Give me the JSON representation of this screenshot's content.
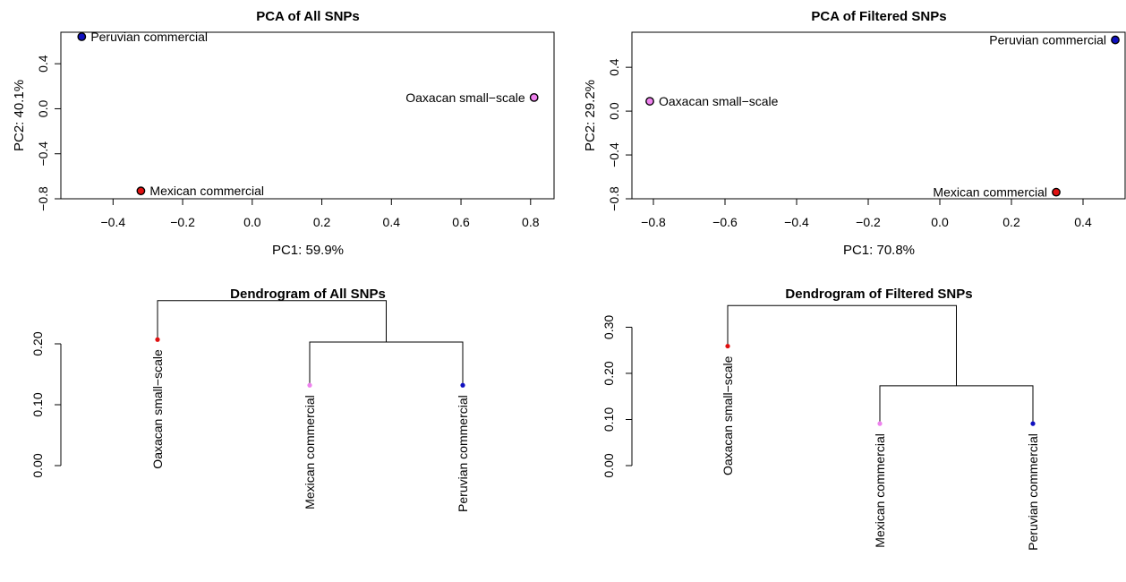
{
  "chart_data": [
    {
      "type": "scatter",
      "title": "PCA of All SNPs",
      "xlabel": "PC1: 59.9%",
      "ylabel": "PC2: 40.1%",
      "xlim": [
        -0.55,
        0.87
      ],
      "ylim": [
        -0.8,
        0.68
      ],
      "xticks": [
        -0.4,
        -0.2,
        0.0,
        0.2,
        0.4,
        0.6,
        0.8
      ],
      "xtick_labels": [
        "−0.4",
        "−0.2",
        "0.0",
        "0.2",
        "0.4",
        "0.6",
        "0.8"
      ],
      "yticks": [
        -0.8,
        -0.4,
        0.0,
        0.4
      ],
      "ytick_labels": [
        "−0.8",
        "−0.4",
        "0.0",
        "0.4"
      ],
      "grid": false,
      "points": [
        {
          "label": "Peruvian commercial",
          "x": -0.49,
          "y": 0.64,
          "color": "#1010c0",
          "label_side": "right"
        },
        {
          "label": "Oaxacan small−scale",
          "x": 0.81,
          "y": 0.1,
          "color": "#ee82ee",
          "label_side": "left"
        },
        {
          "label": "Mexican commercial",
          "x": -0.32,
          "y": -0.73,
          "color": "#e01010",
          "label_side": "right"
        }
      ]
    },
    {
      "type": "scatter",
      "title": "PCA of Filtered SNPs",
      "xlabel": "PC1: 70.8%",
      "ylabel": "PC2: 29.2%",
      "xlim": [
        -0.86,
        0.52
      ],
      "ylim": [
        -0.8,
        0.72
      ],
      "xticks": [
        -0.8,
        -0.6,
        -0.4,
        -0.2,
        0.0,
        0.2,
        0.4
      ],
      "xtick_labels": [
        "−0.8",
        "−0.6",
        "−0.4",
        "−0.2",
        "0.0",
        "0.2",
        "0.4"
      ],
      "yticks": [
        -0.8,
        -0.4,
        0.0,
        0.4
      ],
      "ytick_labels": [
        "−0.8",
        "−0.4",
        "0.0",
        "0.4"
      ],
      "grid": false,
      "points": [
        {
          "label": "Peruvian commercial",
          "x": 0.49,
          "y": 0.65,
          "color": "#1010c0",
          "label_side": "left"
        },
        {
          "label": "Oaxacan small−scale",
          "x": -0.81,
          "y": 0.09,
          "color": "#ee82ee",
          "label_side": "right"
        },
        {
          "label": "Mexican commercial",
          "x": 0.325,
          "y": -0.74,
          "color": "#e01010",
          "label_side": "left"
        }
      ]
    },
    {
      "type": "dendrogram",
      "title": "Dendrogram of All SNPs",
      "ylim": [
        0.0,
        0.25
      ],
      "yticks": [
        0.0,
        0.1,
        0.2
      ],
      "ytick_labels": [
        "0.00",
        "0.10",
        "0.20"
      ],
      "leaves": [
        {
          "label": "Oaxacan small−scale",
          "height": 0.207,
          "color": "#e01010"
        },
        {
          "label": "Mexican commercial",
          "height": 0.132,
          "color": "#ee82ee"
        },
        {
          "label": "Peruvian commercial",
          "height": 0.132,
          "color": "#1010c0"
        }
      ],
      "merges": [
        {
          "left": [
            1
          ],
          "right": [
            2
          ],
          "height": 0.203
        },
        {
          "left": [
            0
          ],
          "right": [
            1,
            2
          ],
          "height": 0.271
        }
      ]
    },
    {
      "type": "dendrogram",
      "title": "Dendrogram of Filtered SNPs",
      "ylim": [
        0.0,
        0.33
      ],
      "yticks": [
        0.0,
        0.1,
        0.2,
        0.3
      ],
      "ytick_labels": [
        "0.00",
        "0.10",
        "0.20",
        "0.30"
      ],
      "leaves": [
        {
          "label": "Oaxacan small−scale",
          "height": 0.259,
          "color": "#e01010"
        },
        {
          "label": "Mexican commercial",
          "height": 0.091,
          "color": "#ee82ee"
        },
        {
          "label": "Peruvian commercial",
          "height": 0.091,
          "color": "#1010c0"
        }
      ],
      "merges": [
        {
          "left": [
            1
          ],
          "right": [
            2
          ],
          "height": 0.173
        },
        {
          "left": [
            0
          ],
          "right": [
            1,
            2
          ],
          "height": 0.347
        }
      ]
    }
  ]
}
